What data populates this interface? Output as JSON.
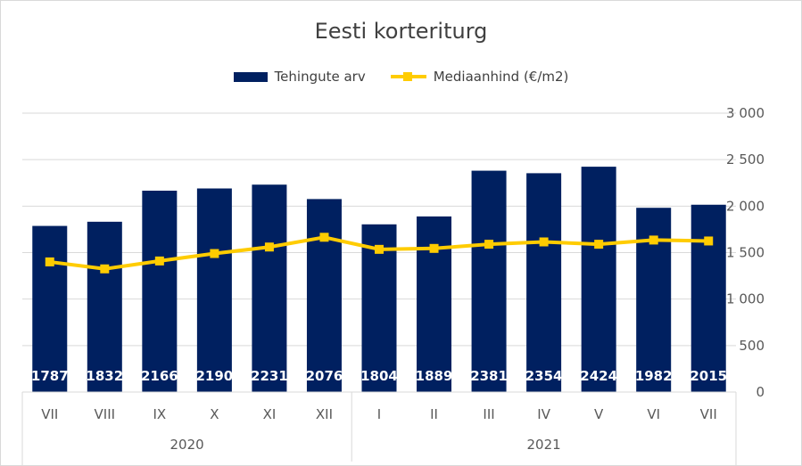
{
  "chart_data": {
    "type": "bar",
    "title": "Eesti korteriturg",
    "categories": [
      "VII",
      "VIII",
      "IX",
      "X",
      "XI",
      "XII",
      "I",
      "II",
      "III",
      "IV",
      "V",
      "VI",
      "VII"
    ],
    "category_groups": [
      {
        "label": "2020",
        "count": 6
      },
      {
        "label": "2021",
        "count": 7
      }
    ],
    "series": [
      {
        "name": "Tehingute arv",
        "type": "bar",
        "axis": "right",
        "color": "#002060",
        "values": [
          1787,
          1832,
          2166,
          2190,
          2231,
          2076,
          1804,
          1889,
          2381,
          2354,
          2424,
          1982,
          2015
        ],
        "data_labels": [
          "1787",
          "1832",
          "2166",
          "2190",
          "2231",
          "2076",
          "1804",
          "1889",
          "2381",
          "2354",
          "2424",
          "1982",
          "2015"
        ]
      },
      {
        "name": "Mediaanhind (€/m2)",
        "type": "line",
        "axis": "right",
        "color": "#FFCC00",
        "marker": "square",
        "values": [
          1400,
          1325,
          1410,
          1490,
          1560,
          1665,
          1535,
          1545,
          1590,
          1615,
          1590,
          1635,
          1625
        ]
      }
    ],
    "y_axis": {
      "position": "right",
      "ylim": [
        0,
        3000
      ],
      "ticks": [
        0,
        500,
        1000,
        1500,
        2000,
        2500,
        3000
      ],
      "tick_labels": [
        "0",
        "500",
        "1 000",
        "1 500",
        "2 000",
        "2 500",
        "3 000"
      ]
    },
    "grid": true,
    "legend_position": "top-center"
  }
}
